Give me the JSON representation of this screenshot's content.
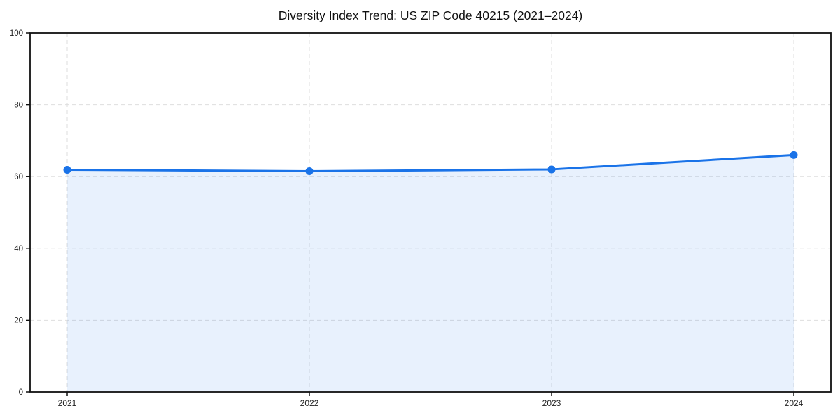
{
  "page": {
    "background": "#ffffff"
  },
  "chart_data": {
    "type": "area",
    "title": "Diversity Index Trend: US ZIP Code 40215 (2021–2024)",
    "categories": [
      "2021",
      "2022",
      "2023",
      "2024"
    ],
    "series": [
      {
        "name": "Diversity Index",
        "values": [
          61.9,
          61.5,
          62.0,
          66.0
        ]
      }
    ],
    "xlabel": "",
    "ylabel": "",
    "ylim": [
      0,
      100
    ],
    "yticks": [
      0,
      20,
      40,
      60,
      80,
      100
    ],
    "grid": "dashed horizontal and vertical",
    "legend": "none",
    "colors": {
      "line": "#1a73e8",
      "marker": "#1a73e8",
      "area_fill": "#1a73e8",
      "area_fill_opacity": 0.1,
      "gridline": "#dedede",
      "spine": "#111111",
      "tick_label": "#222222",
      "title": "#111111"
    }
  }
}
